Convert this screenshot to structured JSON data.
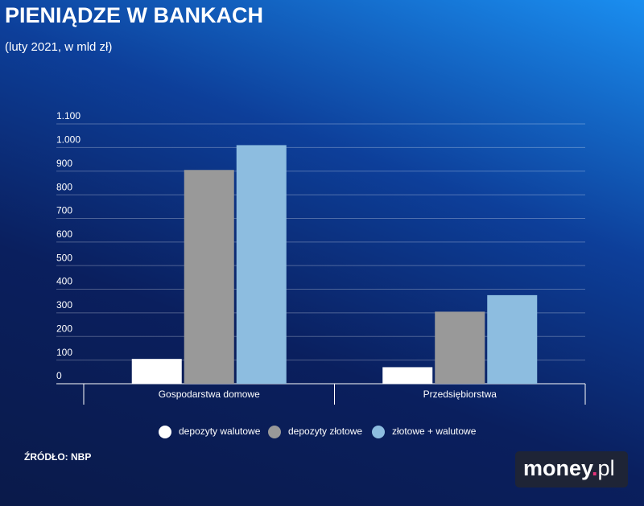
{
  "chart_data": {
    "type": "bar",
    "title": "PIENIĄDZE W BANKACH",
    "subtitle": "(luty 2021, w mld zł)",
    "categories": [
      "Gospodarstwa domowe",
      "Przedsiębiorstwa"
    ],
    "series": [
      {
        "name": "depozyty walutowe",
        "color": "#ffffff",
        "values": [
          105,
          70
        ]
      },
      {
        "name": "depozyty złotowe",
        "color": "#999999",
        "values": [
          905,
          305
        ]
      },
      {
        "name": "złotowe + walutowe",
        "color": "#8dbde0",
        "values": [
          1010,
          375
        ]
      }
    ],
    "ylim": [
      0,
      1100
    ],
    "yticks": [
      0,
      100,
      200,
      300,
      400,
      500,
      600,
      700,
      800,
      900,
      {
        "value": 1000,
        "label": "1.000"
      },
      {
        "value": 1100,
        "label": "1.100"
      }
    ],
    "grid": true,
    "legend": "bottom"
  },
  "source": "ŹRÓDŁO: NBP",
  "logo": {
    "name": "money",
    "dot": ".",
    "tld": "pl"
  }
}
